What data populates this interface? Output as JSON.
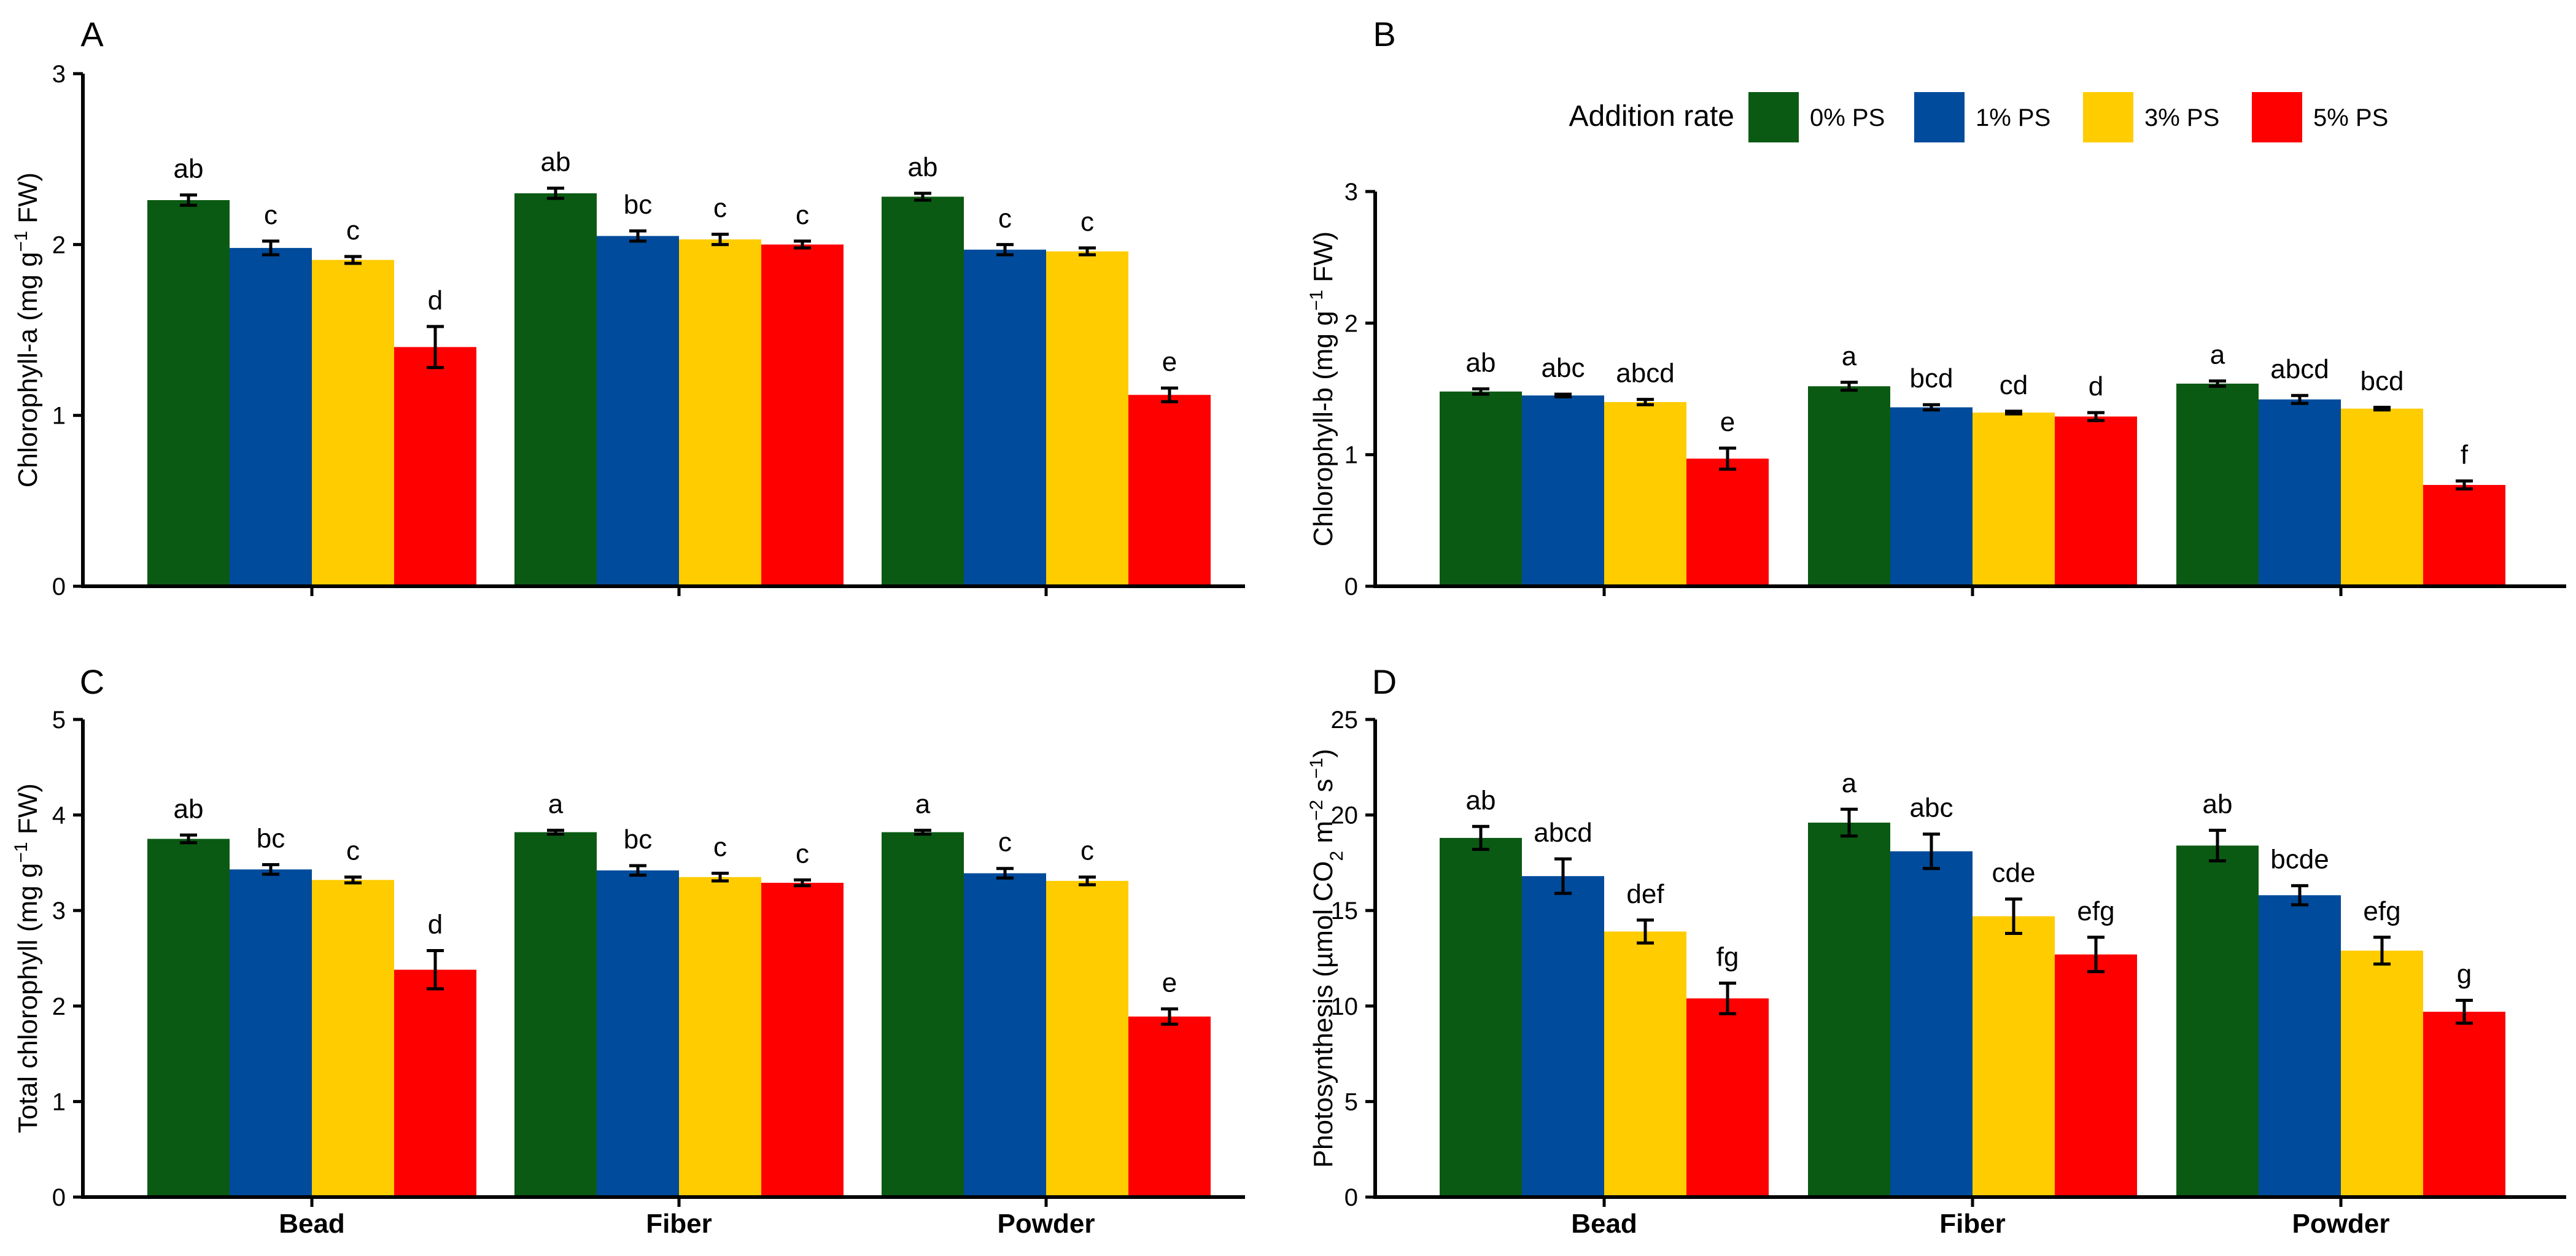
{
  "legend": {
    "title": "Addition rate",
    "items": [
      {
        "label": "0% PS",
        "color": "#0b5a13"
      },
      {
        "label": "1% PS",
        "color": "#004b9b"
      },
      {
        "label": "3% PS",
        "color": "#ffcc00"
      },
      {
        "label": "5% PS",
        "color": "#ff0000"
      }
    ]
  },
  "chart_data": [
    {
      "panel": "A",
      "type": "bar",
      "title": "",
      "xlabel": "",
      "ylabel_parts": [
        "Chlorophyll-a (mg g",
        "−1",
        " FW)"
      ],
      "categories": [
        "Bead",
        "Fiber",
        "Powder"
      ],
      "ylim": [
        0,
        3
      ],
      "yticks": [
        0,
        1,
        2,
        3
      ],
      "series": [
        {
          "name": "0% PS",
          "values": [
            2.26,
            2.3,
            2.28
          ],
          "errors": [
            0.03,
            0.03,
            0.02
          ],
          "labels": [
            "ab",
            "ab",
            "ab"
          ]
        },
        {
          "name": "1% PS",
          "values": [
            1.98,
            2.05,
            1.97
          ],
          "errors": [
            0.04,
            0.03,
            0.03
          ],
          "labels": [
            "c",
            "bc",
            "c"
          ]
        },
        {
          "name": "3% PS",
          "values": [
            1.91,
            2.03,
            1.96
          ],
          "errors": [
            0.02,
            0.03,
            0.02
          ],
          "labels": [
            "c",
            "c",
            "c"
          ]
        },
        {
          "name": "5% PS",
          "values": [
            1.4,
            2.0,
            1.12
          ],
          "errors": [
            0.12,
            0.02,
            0.04
          ],
          "labels": [
            "d",
            "c",
            "e"
          ]
        }
      ]
    },
    {
      "panel": "B",
      "type": "bar",
      "title": "",
      "xlabel": "",
      "ylabel_parts": [
        "Chlorophyll-b (mg g",
        "−1",
        " FW)"
      ],
      "categories": [
        "Bead",
        "Fiber",
        "Powder"
      ],
      "ylim": [
        0,
        3
      ],
      "yticks": [
        0,
        1,
        2,
        3
      ],
      "series": [
        {
          "name": "0% PS",
          "values": [
            1.48,
            1.52,
            1.54
          ],
          "errors": [
            0.02,
            0.03,
            0.02
          ],
          "labels": [
            "ab",
            "a",
            "a"
          ]
        },
        {
          "name": "1% PS",
          "values": [
            1.45,
            1.36,
            1.42
          ],
          "errors": [
            0.01,
            0.02,
            0.03
          ],
          "labels": [
            "abc",
            "bcd",
            "abcd"
          ]
        },
        {
          "name": "3% PS",
          "values": [
            1.4,
            1.32,
            1.35
          ],
          "errors": [
            0.02,
            0.01,
            0.01
          ],
          "labels": [
            "abcd",
            "cd",
            "bcd"
          ]
        },
        {
          "name": "5% PS",
          "values": [
            0.97,
            1.29,
            0.77
          ],
          "errors": [
            0.08,
            0.03,
            0.03
          ],
          "labels": [
            "e",
            "d",
            "f"
          ]
        }
      ]
    },
    {
      "panel": "C",
      "type": "bar",
      "title": "",
      "xlabel": "",
      "ylabel_parts": [
        "Total chlorophyll (mg g",
        "−1",
        " FW)"
      ],
      "categories": [
        "Bead",
        "Fiber",
        "Powder"
      ],
      "ylim": [
        0,
        5
      ],
      "yticks": [
        0,
        1,
        2,
        3,
        4,
        5
      ],
      "series": [
        {
          "name": "0% PS",
          "values": [
            3.75,
            3.82,
            3.82
          ],
          "errors": [
            0.04,
            0.02,
            0.02
          ],
          "labels": [
            "ab",
            "a",
            "a"
          ]
        },
        {
          "name": "1% PS",
          "values": [
            3.43,
            3.42,
            3.39
          ],
          "errors": [
            0.05,
            0.05,
            0.05
          ],
          "labels": [
            "bc",
            "bc",
            "c"
          ]
        },
        {
          "name": "3% PS",
          "values": [
            3.32,
            3.35,
            3.31
          ],
          "errors": [
            0.03,
            0.04,
            0.04
          ],
          "labels": [
            "c",
            "c",
            "c"
          ]
        },
        {
          "name": "5% PS",
          "values": [
            2.38,
            3.29,
            1.89
          ],
          "errors": [
            0.2,
            0.03,
            0.08
          ],
          "labels": [
            "d",
            "c",
            "e"
          ]
        }
      ]
    },
    {
      "panel": "D",
      "type": "bar",
      "title": "",
      "xlabel": "",
      "ylabel_parts": [
        "Photosynthesis (µmol CO",
        "2",
        " m",
        "−2",
        " s",
        "−1",
        ")"
      ],
      "categories": [
        "Bead",
        "Fiber",
        "Powder"
      ],
      "ylim": [
        0,
        25
      ],
      "yticks": [
        0,
        5,
        10,
        15,
        20,
        25
      ],
      "series": [
        {
          "name": "0% PS",
          "values": [
            18.8,
            19.6,
            18.4
          ],
          "errors": [
            0.6,
            0.7,
            0.8
          ],
          "labels": [
            "ab",
            "a",
            "ab"
          ]
        },
        {
          "name": "1% PS",
          "values": [
            16.8,
            18.1,
            15.8
          ],
          "errors": [
            0.9,
            0.9,
            0.5
          ],
          "labels": [
            "abcd",
            "abc",
            "bcde"
          ]
        },
        {
          "name": "3% PS",
          "values": [
            13.9,
            14.7,
            12.9
          ],
          "errors": [
            0.6,
            0.9,
            0.7
          ],
          "labels": [
            "def",
            "cde",
            "efg"
          ]
        },
        {
          "name": "5% PS",
          "values": [
            10.4,
            12.7,
            9.7
          ],
          "errors": [
            0.8,
            0.9,
            0.6
          ],
          "labels": [
            "fg",
            "efg",
            "g"
          ]
        }
      ]
    }
  ]
}
